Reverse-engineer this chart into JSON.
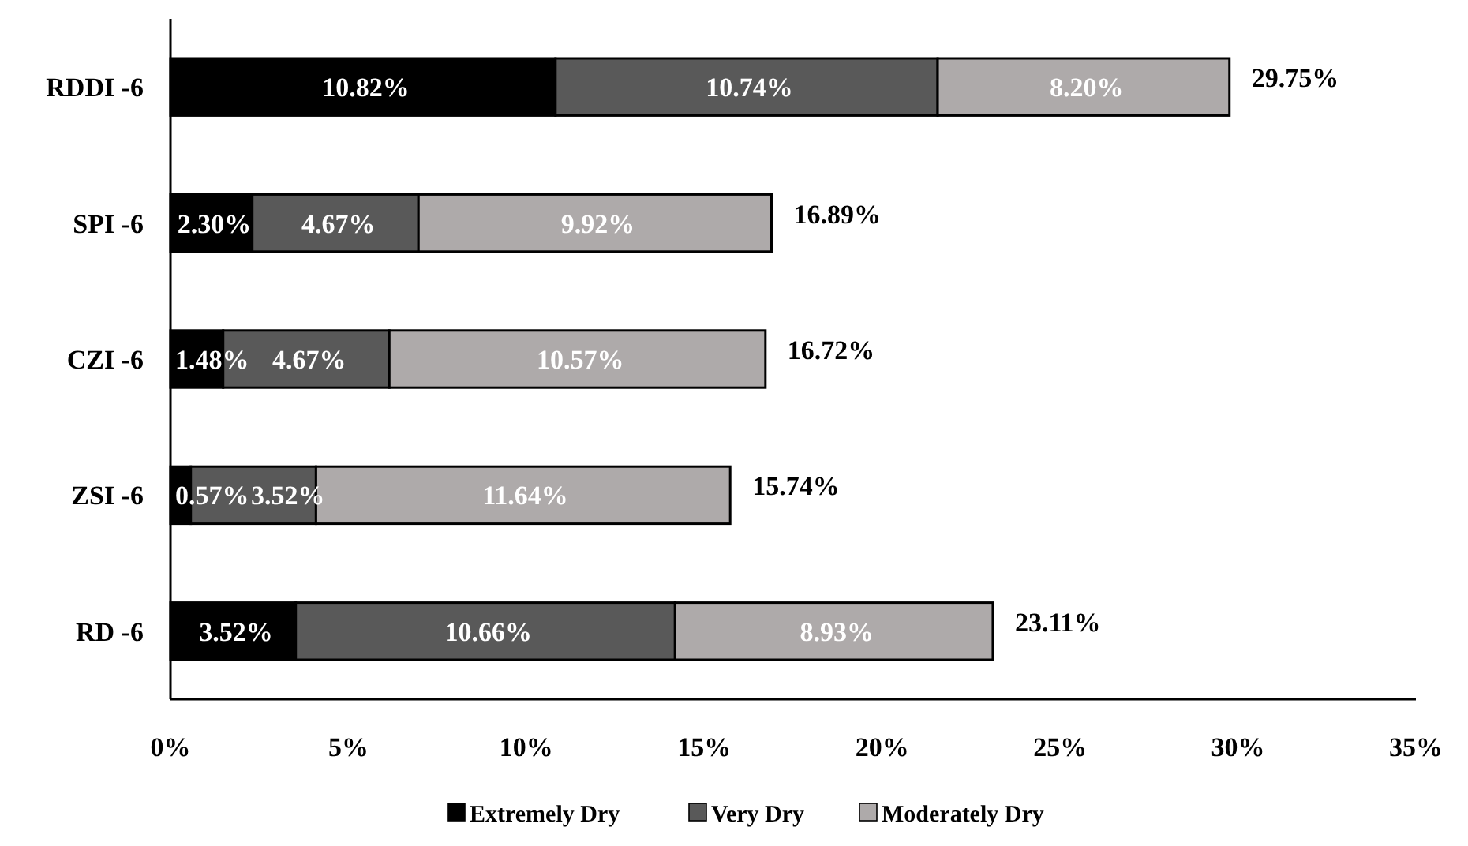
{
  "chart_data": {
    "type": "bar",
    "orientation": "horizontal",
    "stacked": true,
    "categories": [
      "RDDI -6",
      "SPI -6",
      "CZI -6",
      "ZSI -6",
      "RD -6"
    ],
    "series": [
      {
        "name": "Extremely Dry",
        "color": "#000000",
        "values": [
          10.82,
          2.3,
          1.48,
          0.57,
          3.52
        ],
        "value_labels": [
          "10.82%",
          "2.30%",
          "1.48%",
          "0.57%",
          "3.52%"
        ]
      },
      {
        "name": "Very Dry",
        "color": "#595959",
        "values": [
          10.74,
          4.67,
          4.67,
          3.52,
          10.66
        ],
        "value_labels": [
          "10.74%",
          "4.67%",
          "4.67%",
          "3.52%",
          "10.66%"
        ]
      },
      {
        "name": "Moderately Dry",
        "color": "#aeaaaa",
        "values": [
          8.2,
          9.92,
          10.57,
          11.64,
          8.93
        ],
        "value_labels": [
          "8.20%",
          "9.92%",
          "10.57%",
          "11.64%",
          "8.93%"
        ]
      }
    ],
    "totals": [
      "29.75%",
      "16.89%",
      "16.72%",
      "15.74%",
      "23.11%"
    ],
    "xlim": [
      0,
      35
    ],
    "xticks": [
      {
        "value": 0,
        "label": "0%"
      },
      {
        "value": 5,
        "label": "5%"
      },
      {
        "value": 10,
        "label": "10%"
      },
      {
        "value": 15,
        "label": "15%"
      },
      {
        "value": 20,
        "label": "20%"
      },
      {
        "value": 25,
        "label": "25%"
      },
      {
        "value": 30,
        "label": "30%"
      },
      {
        "value": 35,
        "label": "35%"
      }
    ],
    "grid": false,
    "legend": "bottom"
  }
}
